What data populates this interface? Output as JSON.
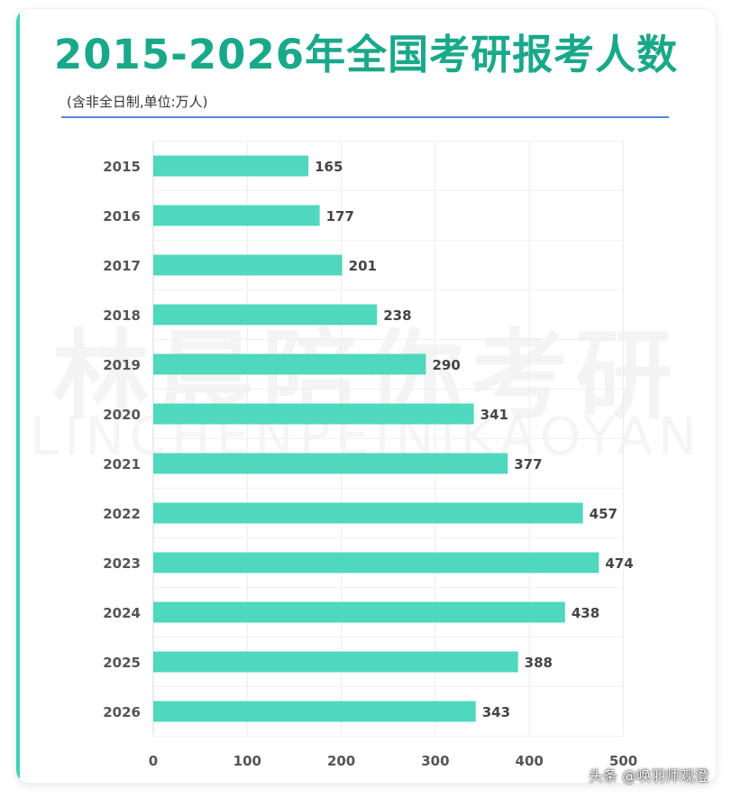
{
  "chart_data": {
    "type": "bar",
    "orientation": "horizontal",
    "title": "2015-2026年全国考研报考人数",
    "subtitle": "(含非全日制,单位:万人)",
    "categories": [
      "2015",
      "2016",
      "2017",
      "2018",
      "2019",
      "2020",
      "2021",
      "2022",
      "2023",
      "2024",
      "2025",
      "2026"
    ],
    "values": [
      165,
      177,
      201,
      238,
      290,
      341,
      377,
      457,
      474,
      438,
      388,
      343
    ],
    "xlim": [
      0,
      500
    ],
    "xticks": [
      0,
      100,
      200,
      300,
      400,
      500
    ],
    "grid": true,
    "bar_color": "#4fd8bd",
    "title_color": "#19a98a"
  },
  "watermark": {
    "cn": "林晨陪你考研",
    "en": "LINCHENPEINIKAOYAN"
  },
  "credit": "头条 @唤羽师观澄"
}
